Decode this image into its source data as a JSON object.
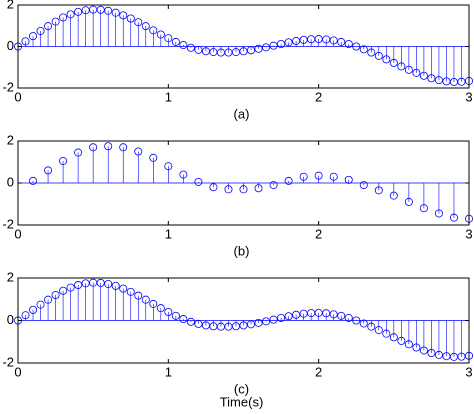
{
  "chart_data": [
    {
      "type": "stem",
      "xlabel": "(a)",
      "color": "#0000ff",
      "xlim": [
        0,
        3
      ],
      "ylim": [
        -2,
        2
      ],
      "xticks": [
        0,
        1,
        2,
        3
      ],
      "yticks": [
        -2,
        0,
        2
      ],
      "x": [
        0,
        0.05,
        0.1,
        0.15,
        0.2,
        0.25,
        0.3,
        0.35,
        0.4,
        0.45,
        0.5,
        0.55,
        0.6,
        0.65,
        0.7,
        0.75,
        0.8,
        0.85,
        0.9,
        0.95,
        1,
        1.05,
        1.1,
        1.15,
        1.2,
        1.25,
        1.3,
        1.35,
        1.4,
        1.45,
        1.5,
        1.55,
        1.6,
        1.65,
        1.7,
        1.75,
        1.8,
        1.85,
        1.9,
        1.95,
        2,
        2.05,
        2.1,
        2.15,
        2.2,
        2.25,
        2.3,
        2.35,
        2.4,
        2.45,
        2.5,
        2.55,
        2.6,
        2.65,
        2.7,
        2.75,
        2.8,
        2.85,
        2.9,
        2.95,
        3
      ],
      "values": [
        0,
        0.25,
        0.5,
        0.75,
        0.98,
        1.2,
        1.4,
        1.55,
        1.67,
        1.75,
        1.78,
        1.77,
        1.72,
        1.63,
        1.5,
        1.35,
        1.17,
        0.98,
        0.78,
        0.58,
        0.4,
        0.22,
        0.07,
        -0.06,
        -0.16,
        -0.23,
        -0.27,
        -0.29,
        -0.29,
        -0.27,
        -0.23,
        -0.18,
        -0.11,
        -0.04,
        0.04,
        0.12,
        0.2,
        0.27,
        0.32,
        0.35,
        0.36,
        0.34,
        0.29,
        0.22,
        0.12,
        0,
        -0.14,
        -0.29,
        -0.45,
        -0.62,
        -0.79,
        -0.96,
        -1.12,
        -1.27,
        -1.41,
        -1.53,
        -1.62,
        -1.68,
        -1.71,
        -1.7,
        -1.66
      ]
    },
    {
      "type": "stem",
      "xlabel": "(b)",
      "color": "#0000ff",
      "xlim": [
        0,
        3
      ],
      "ylim": [
        -2,
        2
      ],
      "xticks": [
        0,
        1,
        2,
        3
      ],
      "yticks": [
        -2,
        0,
        2
      ],
      "x": [
        0.1,
        0.2,
        0.3,
        0.4,
        0.5,
        0.6,
        0.7,
        0.8,
        0.9,
        1,
        1.1,
        1.2,
        1.3,
        1.4,
        1.5,
        1.6,
        1.7,
        1.8,
        1.9,
        2,
        2.1,
        2.2,
        2.3,
        2.4,
        2.5,
        2.6,
        2.7,
        2.8,
        2.9,
        3
      ],
      "values": [
        0.1,
        0.6,
        1.05,
        1.45,
        1.7,
        1.75,
        1.7,
        1.5,
        1.2,
        0.8,
        0.4,
        0.05,
        -0.2,
        -0.3,
        -0.3,
        -0.25,
        -0.1,
        0.1,
        0.3,
        0.35,
        0.3,
        0.15,
        -0.1,
        -0.35,
        -0.6,
        -0.9,
        -1.2,
        -1.45,
        -1.65,
        -1.7
      ]
    },
    {
      "type": "stem",
      "xlabel": "(c)",
      "x_axis_title": "Time(s)",
      "color": "#0000ff",
      "xlim": [
        0,
        3
      ],
      "ylim": [
        -2,
        2
      ],
      "xticks": [
        0,
        1,
        2,
        3
      ],
      "yticks": [
        -2,
        0,
        2
      ],
      "x": [
        0,
        0.05,
        0.1,
        0.15,
        0.2,
        0.25,
        0.3,
        0.35,
        0.4,
        0.45,
        0.5,
        0.55,
        0.6,
        0.65,
        0.7,
        0.75,
        0.8,
        0.85,
        0.9,
        0.95,
        1,
        1.05,
        1.1,
        1.15,
        1.2,
        1.25,
        1.3,
        1.35,
        1.4,
        1.45,
        1.5,
        1.55,
        1.6,
        1.65,
        1.7,
        1.75,
        1.8,
        1.85,
        1.9,
        1.95,
        2,
        2.05,
        2.1,
        2.15,
        2.2,
        2.25,
        2.3,
        2.35,
        2.4,
        2.45,
        2.5,
        2.55,
        2.6,
        2.65,
        2.7,
        2.75,
        2.8,
        2.85,
        2.9,
        2.95,
        3
      ],
      "values": [
        0,
        0.25,
        0.5,
        0.75,
        0.98,
        1.2,
        1.4,
        1.55,
        1.67,
        1.75,
        1.78,
        1.77,
        1.72,
        1.63,
        1.5,
        1.35,
        1.17,
        0.98,
        0.78,
        0.58,
        0.4,
        0.22,
        0.07,
        -0.06,
        -0.16,
        -0.23,
        -0.27,
        -0.29,
        -0.29,
        -0.27,
        -0.23,
        -0.18,
        -0.11,
        -0.04,
        0.04,
        0.12,
        0.2,
        0.27,
        0.32,
        0.35,
        0.36,
        0.34,
        0.29,
        0.22,
        0.12,
        0,
        -0.14,
        -0.29,
        -0.45,
        -0.62,
        -0.79,
        -0.96,
        -1.12,
        -1.27,
        -1.41,
        -1.53,
        -1.62,
        -1.68,
        -1.71,
        -1.7,
        -1.66
      ]
    }
  ]
}
